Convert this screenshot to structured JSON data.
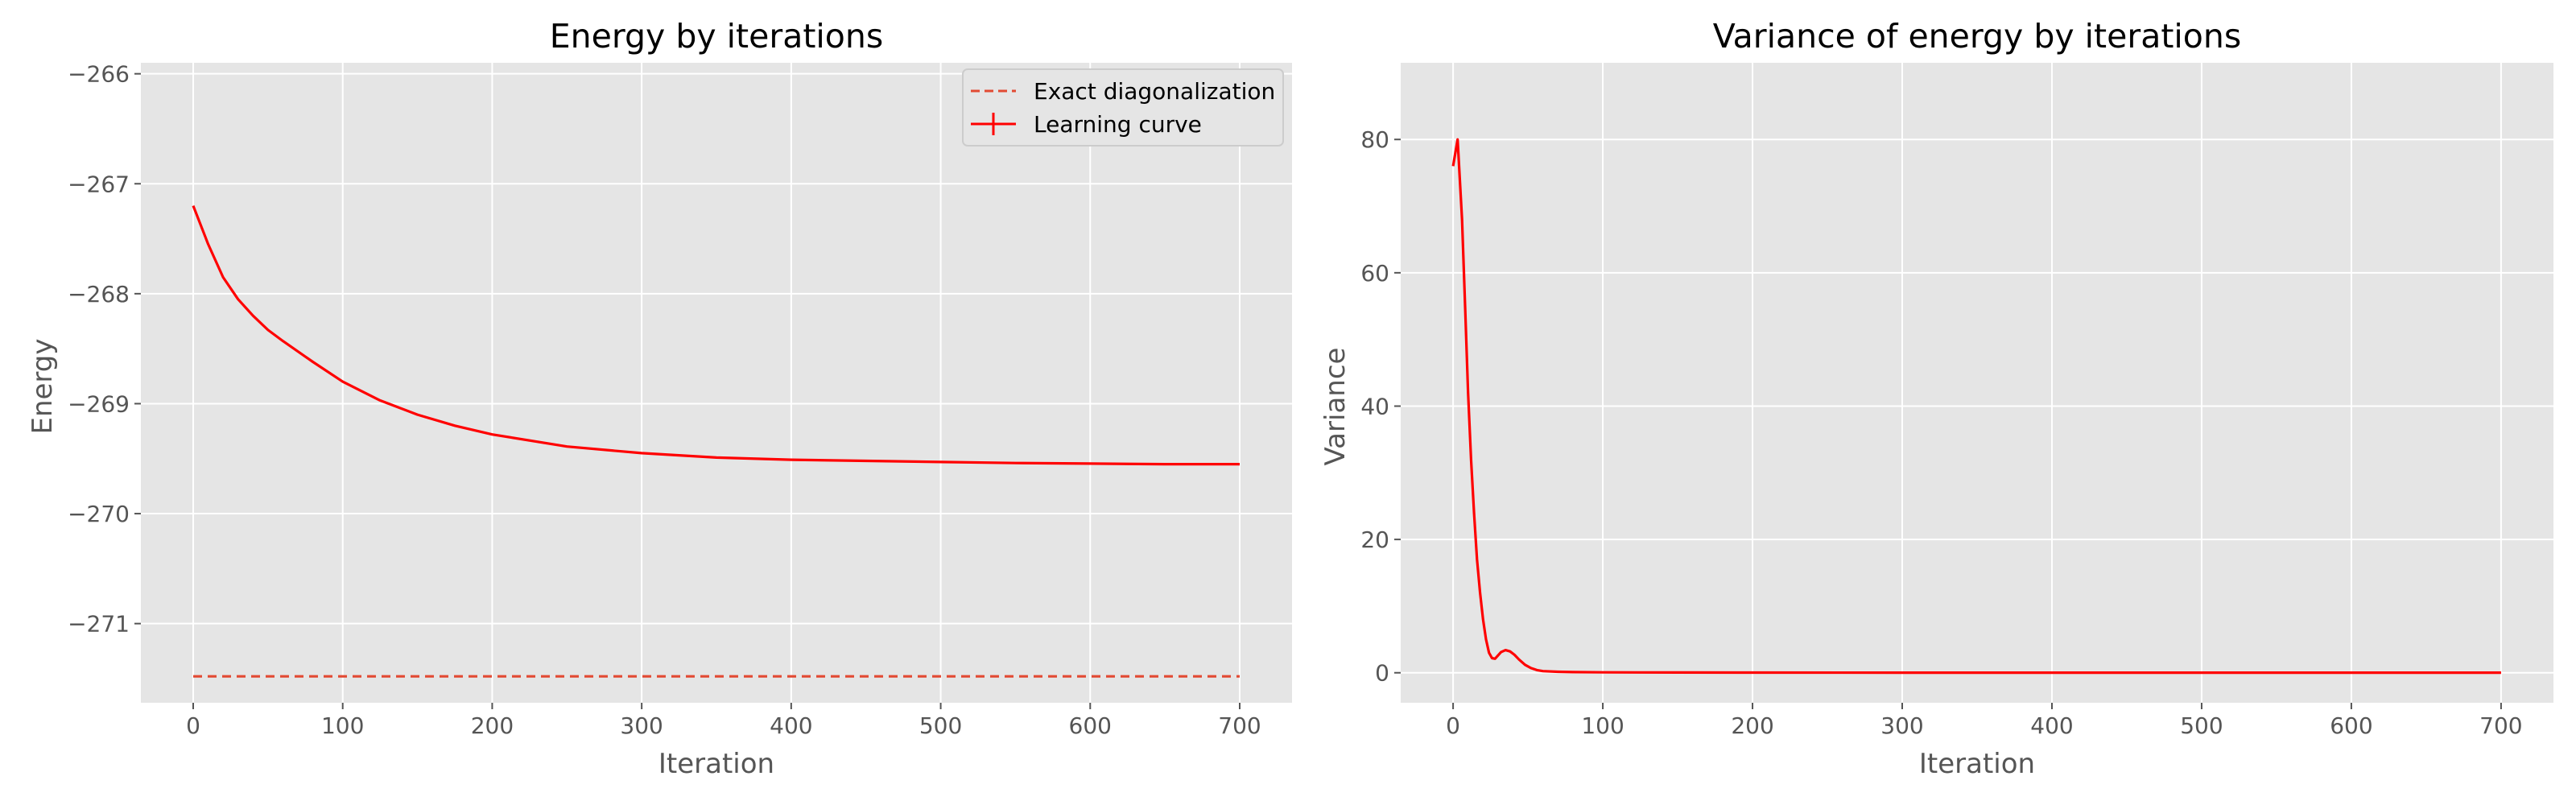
{
  "chart_data": [
    {
      "type": "line",
      "title": "Energy by iterations",
      "xlabel": "Iteration",
      "ylabel": "Energy",
      "xlim": [
        -35,
        735
      ],
      "ylim": [
        -271.72,
        -265.9
      ],
      "xticks": [
        0,
        100,
        200,
        300,
        400,
        500,
        600,
        700
      ],
      "xtick_labels": [
        "0",
        "100",
        "200",
        "300",
        "400",
        "500",
        "600",
        "700"
      ],
      "yticks": [
        -266,
        -267,
        -268,
        -269,
        -270,
        -271
      ],
      "ytick_labels": [
        "−266",
        "−267",
        "−268",
        "−269",
        "−270",
        "−271"
      ],
      "grid": true,
      "legend_position": "top-right",
      "series": [
        {
          "name": "Exact diagonalization",
          "style": "dashed",
          "color": "#e24a33",
          "x": [
            0,
            700
          ],
          "y": [
            -271.48,
            -271.48
          ]
        },
        {
          "name": "Learning curve",
          "style": "solid-with-errorbars",
          "color": "#ff0000",
          "x": [
            0,
            10,
            20,
            30,
            40,
            50,
            60,
            80,
            100,
            125,
            150,
            175,
            200,
            250,
            300,
            350,
            400,
            450,
            500,
            550,
            600,
            650,
            700
          ],
          "y": [
            -267.2,
            -267.55,
            -267.85,
            -268.05,
            -268.2,
            -268.33,
            -268.43,
            -268.62,
            -268.8,
            -268.97,
            -269.1,
            -269.2,
            -269.28,
            -269.39,
            -269.45,
            -269.49,
            -269.51,
            -269.52,
            -269.53,
            -269.54,
            -269.545,
            -269.55,
            -269.55
          ]
        }
      ]
    },
    {
      "type": "line",
      "title": "Variance of energy by iterations",
      "xlabel": "Iteration",
      "ylabel": "Variance",
      "xlim": [
        -35,
        735
      ],
      "ylim": [
        -4.5,
        91.5
      ],
      "xticks": [
        0,
        100,
        200,
        300,
        400,
        500,
        600,
        700
      ],
      "xtick_labels": [
        "0",
        "100",
        "200",
        "300",
        "400",
        "500",
        "600",
        "700"
      ],
      "yticks": [
        0,
        20,
        40,
        60,
        80
      ],
      "ytick_labels": [
        "0",
        "20",
        "40",
        "60",
        "80"
      ],
      "grid": true,
      "series": [
        {
          "color": "#ff0000",
          "style": "solid",
          "x": [
            0,
            3,
            6,
            8,
            10,
            12,
            14,
            16,
            18,
            20,
            22,
            24,
            26,
            28,
            30,
            32,
            35,
            38,
            41,
            44,
            48,
            52,
            56,
            60,
            70,
            80,
            100,
            150,
            200,
            300,
            400,
            500,
            600,
            700
          ],
          "y": [
            76,
            80,
            68,
            55,
            42,
            32,
            24,
            17,
            12,
            8,
            5,
            3,
            2.2,
            2.1,
            2.6,
            3.1,
            3.4,
            3.2,
            2.7,
            2.0,
            1.2,
            0.7,
            0.4,
            0.25,
            0.15,
            0.1,
            0.06,
            0.04,
            0.03,
            0.02,
            0.02,
            0.02,
            0.02,
            0.02
          ]
        }
      ]
    }
  ]
}
